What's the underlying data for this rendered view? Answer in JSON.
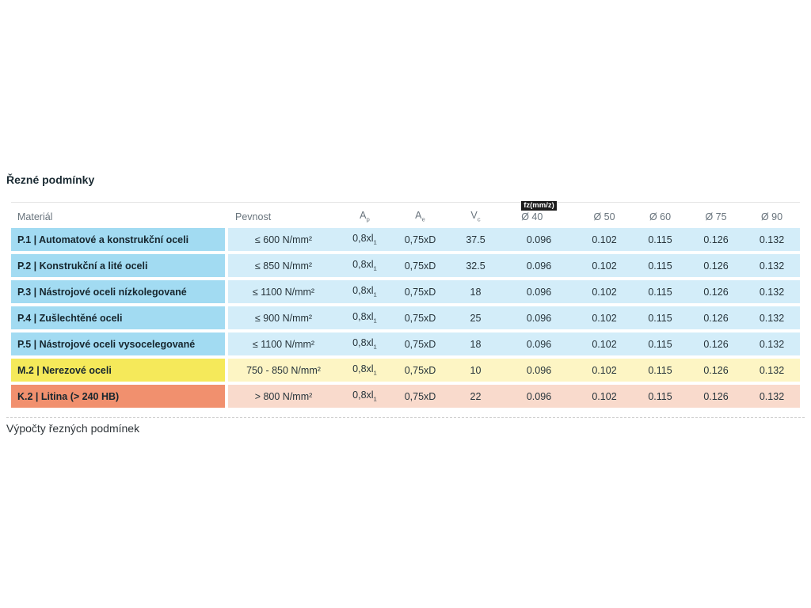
{
  "page": {
    "title": "Řezné podmínky",
    "footer_text": "Výpočty řezných podmínek"
  },
  "table": {
    "headers": {
      "material": "Materiál",
      "pevnost": "Pevnost",
      "ap_base": "A",
      "ap_sub": "p",
      "ae_base": "A",
      "ae_sub": "e",
      "vc_base": "V",
      "vc_sub": "c",
      "fz_badge": "fz(mm/z)",
      "diameters": [
        "Ø 40",
        "Ø 50",
        "Ø 60",
        "Ø 75",
        "Ø 90"
      ]
    },
    "colors": {
      "blue_cell": "#a2dbf2",
      "blue_row": "#d3edf9",
      "yellow_cell": "#f5e95a",
      "yellow_row": "#fdf5c4",
      "orange_cell": "#f1906e",
      "orange_row": "#f9dacc",
      "badge_bg": "#1c1c1c"
    },
    "rows": [
      {
        "theme": "blue",
        "material": "P.1 | Automatové a konstrukční oceli",
        "pevnost": "≤ 600 N/mm²",
        "ap_base": "0,8xl",
        "ap_sub": "1",
        "ae": "0,75xD",
        "vc": "37.5",
        "fz": [
          "0.096",
          "0.102",
          "0.115",
          "0.126",
          "0.132"
        ]
      },
      {
        "theme": "blue",
        "material": "P.2 | Konstrukční a lité oceli",
        "pevnost": "≤ 850 N/mm²",
        "ap_base": "0,8xl",
        "ap_sub": "1",
        "ae": "0,75xD",
        "vc": "32.5",
        "fz": [
          "0.096",
          "0.102",
          "0.115",
          "0.126",
          "0.132"
        ]
      },
      {
        "theme": "blue",
        "material": "P.3 | Nástrojové oceli nízkolegované",
        "pevnost": "≤ 1100 N/mm²",
        "ap_base": "0,8xl",
        "ap_sub": "1",
        "ae": "0,75xD",
        "vc": "18",
        "fz": [
          "0.096",
          "0.102",
          "0.115",
          "0.126",
          "0.132"
        ]
      },
      {
        "theme": "blue",
        "material": "P.4 | Zušlechtěné oceli",
        "pevnost": "≤ 900 N/mm²",
        "ap_base": "0,8xl",
        "ap_sub": "1",
        "ae": "0,75xD",
        "vc": "25",
        "fz": [
          "0.096",
          "0.102",
          "0.115",
          "0.126",
          "0.132"
        ]
      },
      {
        "theme": "blue",
        "material": "P.5 | Nástrojové oceli vysocelegované",
        "pevnost": "≤ 1100 N/mm²",
        "ap_base": "0,8xl",
        "ap_sub": "1",
        "ae": "0,75xD",
        "vc": "18",
        "fz": [
          "0.096",
          "0.102",
          "0.115",
          "0.126",
          "0.132"
        ]
      },
      {
        "theme": "yellow",
        "material": "M.2 | Nerezové oceli",
        "pevnost": "750 - 850 N/mm²",
        "ap_base": "0,8xl",
        "ap_sub": "1",
        "ae": "0,75xD",
        "vc": "10",
        "fz": [
          "0.096",
          "0.102",
          "0.115",
          "0.126",
          "0.132"
        ]
      },
      {
        "theme": "orange",
        "material": "K.2 | Litina (> 240 HB)",
        "pevnost": "> 800 N/mm²",
        "ap_base": "0,8xl",
        "ap_sub": "1",
        "ae": "0,75xD",
        "vc": "22",
        "fz": [
          "0.096",
          "0.102",
          "0.115",
          "0.126",
          "0.132"
        ]
      }
    ]
  }
}
